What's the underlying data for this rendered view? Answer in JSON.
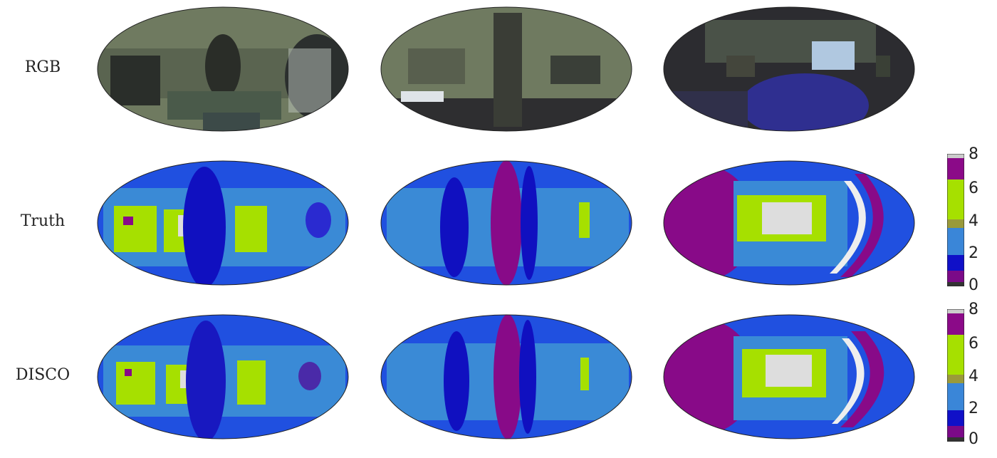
{
  "rows": [
    {
      "label": "RGB"
    },
    {
      "label": "Truth"
    },
    {
      "label": "DISCO"
    }
  ],
  "colorbar": {
    "ticks": [
      "8",
      "6",
      "4",
      "2",
      "0"
    ],
    "colors": [
      "#333333",
      "#7b0a88",
      "#1010c8",
      "#3a86d8",
      "#9a9a3a",
      "#a6e000",
      "#8b0a88",
      "#cccccc"
    ]
  },
  "palette": {
    "rgb_base": "#6f7a60",
    "rgb_dark": "#2c2c30",
    "depth_outer": "#2050e0",
    "depth_mid": "#3a8ad6",
    "depth_near": "#1010c0",
    "depth_green": "#a6e000",
    "depth_purple": "#880a88"
  }
}
